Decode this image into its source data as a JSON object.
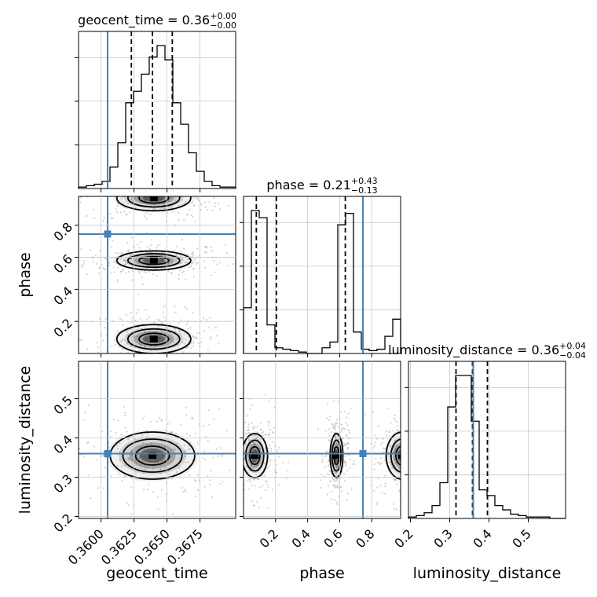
{
  "chart_data": {
    "type": "corner",
    "parameters": [
      "geocent_time",
      "phase",
      "luminosity_distance"
    ],
    "injection": {
      "geocent_time": 0.3605,
      "phase": 0.745,
      "luminosity_distance": 0.36
    },
    "colors": {
      "injection": "#4682b4",
      "hist": "#000000",
      "grid": "#c8c8c8",
      "points": "#9e9e9e",
      "contour": "#000000"
    },
    "grid": true,
    "panels": {
      "geocent_time": {
        "title": {
          "main": "geocent_time = 0.36",
          "sup": "+0.00",
          "sub": "−0.00"
        },
        "xlim": [
          0.3583,
          0.3702
        ],
        "quantiles": [
          0.3623,
          0.3639,
          0.3654
        ],
        "hist": [
          1,
          2,
          3,
          5,
          15,
          32,
          60,
          68,
          80,
          92,
          100,
          90,
          60,
          45,
          25,
          12,
          5,
          2,
          1,
          1
        ],
        "xlabel": "geocent_time",
        "xticks": [
          0.36,
          0.3625,
          0.365,
          0.3675
        ],
        "xticklabels": [
          "0.3600",
          "0.3625",
          "0.3650",
          "0.3675"
        ]
      },
      "phase": {
        "title": {
          "main": "phase = 0.21",
          "sup": "+0.43",
          "sub": "−0.13"
        },
        "xlim": [
          0.0,
          0.98
        ],
        "quantiles": [
          0.08,
          0.205,
          0.635
        ],
        "hist": [
          32,
          100,
          95,
          20,
          4,
          3,
          2,
          1,
          0,
          0,
          4,
          8,
          90,
          98,
          15,
          3,
          2,
          3,
          12,
          24
        ],
        "xlabel": "phase",
        "xticks": [
          0.2,
          0.4,
          0.6,
          0.8
        ],
        "xticklabels": [
          "0.2",
          "0.4",
          "0.6",
          "0.8"
        ],
        "ylabel": "phase",
        "yticks": [
          0.2,
          0.4,
          0.6,
          0.8
        ],
        "yticklabels": [
          "0.2",
          "0.4",
          "0.6",
          "0.8"
        ]
      },
      "luminosity_distance": {
        "title": {
          "main": "luminosity_distance = 0.36",
          "sup": "+0.04",
          "sub": "−0.04"
        },
        "xlim": [
          0.195,
          0.595
        ],
        "quantiles": [
          0.316,
          0.358,
          0.396
        ],
        "hist": [
          1,
          2,
          4,
          9,
          25,
          78,
          100,
          100,
          68,
          20,
          16,
          9,
          6,
          3,
          2,
          1,
          1,
          1,
          0,
          0
        ],
        "xlabel": "luminosity_distance",
        "xticks": [
          0.2,
          0.3,
          0.4,
          0.5
        ],
        "xticklabels": [
          "0.2",
          "0.3",
          "0.4",
          "0.5"
        ],
        "ylabel": "luminosity_distance",
        "yticks": [
          0.2,
          0.3,
          0.4,
          0.5
        ],
        "yticklabels": [
          "0.2",
          "0.3",
          "0.4",
          "0.5"
        ]
      }
    },
    "density_modes": [
      {
        "x_param": "geocent_time",
        "y_param": "phase",
        "center": [
          0.364,
          0.58
        ],
        "sd": [
          0.0014,
          0.03
        ]
      },
      {
        "x_param": "geocent_time",
        "y_param": "phase",
        "center": [
          0.364,
          0.09
        ],
        "sd": [
          0.0014,
          0.045
        ]
      },
      {
        "x_param": "geocent_time",
        "y_param": "phase",
        "center": [
          0.364,
          0.97
        ],
        "sd": [
          0.0014,
          0.04
        ]
      },
      {
        "x_param": "geocent_time",
        "y_param": "luminosity_distance",
        "center": [
          0.3639,
          0.355
        ],
        "sd": [
          0.0016,
          0.03
        ]
      },
      {
        "x_param": "phase",
        "y_param": "luminosity_distance",
        "center": [
          0.07,
          0.355
        ],
        "sd": [
          0.04,
          0.028
        ]
      },
      {
        "x_param": "phase",
        "y_param": "luminosity_distance",
        "center": [
          0.58,
          0.355
        ],
        "sd": [
          0.02,
          0.028
        ]
      },
      {
        "x_param": "phase",
        "y_param": "luminosity_distance",
        "center": [
          0.99,
          0.355
        ],
        "sd": [
          0.05,
          0.03
        ]
      }
    ]
  }
}
